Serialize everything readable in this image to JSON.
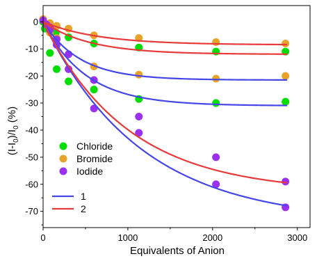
{
  "chart_data": {
    "type": "scatter",
    "xlabel": "Equivalents of Anion",
    "ylabel": "(I-I0)/I0 (%)",
    "xlim": [
      0,
      3150
    ],
    "ylim": [
      -76,
      6
    ],
    "x_ticks": [
      0,
      1000,
      2000,
      3000
    ],
    "y_ticks": [
      0,
      -10,
      -20,
      -30,
      -40,
      -50,
      -60,
      -70
    ],
    "legend_position": "left",
    "series": [
      {
        "name": "Chloride",
        "color": "#00dd00",
        "points": [
          [
            0,
            0
          ],
          [
            20,
            -2.5
          ],
          [
            80,
            -11.5
          ],
          [
            160,
            -17.5
          ],
          [
            300,
            -22
          ],
          [
            600,
            -25
          ],
          [
            1130,
            -28.5
          ],
          [
            2040,
            -30
          ],
          [
            2860,
            -29.5
          ],
          [
            150,
            -4
          ],
          [
            300,
            -5.7
          ],
          [
            600,
            -8
          ],
          [
            1130,
            -9.5
          ],
          [
            2040,
            -11
          ],
          [
            2860,
            -11
          ]
        ]
      },
      {
        "name": "Bromide",
        "color": "#e8a32c",
        "points": [
          [
            0,
            1
          ],
          [
            40,
            -1
          ],
          [
            80,
            -0.5
          ],
          [
            160,
            -1.5
          ],
          [
            300,
            -2.5
          ],
          [
            600,
            -5
          ],
          [
            1130,
            -6
          ],
          [
            2040,
            -7.5
          ],
          [
            2860,
            -8
          ],
          [
            80,
            -4
          ],
          [
            160,
            -6
          ],
          [
            300,
            -12
          ],
          [
            600,
            -16.5
          ],
          [
            1130,
            -19.5
          ],
          [
            2040,
            -21
          ],
          [
            2860,
            -20
          ]
        ]
      },
      {
        "name": "Iodide",
        "color": "#9b30f0",
        "points": [
          [
            0,
            0.5
          ],
          [
            40,
            -1
          ],
          [
            80,
            -3
          ],
          [
            160,
            -8.5
          ],
          [
            300,
            -17.5
          ],
          [
            600,
            -32
          ],
          [
            1130,
            -41
          ],
          [
            2040,
            -60
          ],
          [
            2860,
            -68.5
          ],
          [
            80,
            -2
          ],
          [
            160,
            -6.5
          ],
          [
            300,
            -12
          ],
          [
            600,
            -21.5
          ],
          [
            1130,
            -35
          ],
          [
            2040,
            -50
          ],
          [
            2860,
            -59
          ]
        ]
      }
    ],
    "fits": [
      {
        "name": "1",
        "color": "#4545e8",
        "curves": [
          {
            "A": -31,
            "k": 500
          },
          {
            "A": -21.5,
            "k": 430
          },
          {
            "A": -74,
            "k": 1150
          }
        ]
      },
      {
        "name": "2",
        "color": "#e83a3a",
        "curves": [
          {
            "A": -8.5,
            "k": 650
          },
          {
            "A": -12,
            "k": 550
          },
          {
            "A": -63,
            "k": 1000
          }
        ]
      }
    ],
    "grid": false
  }
}
